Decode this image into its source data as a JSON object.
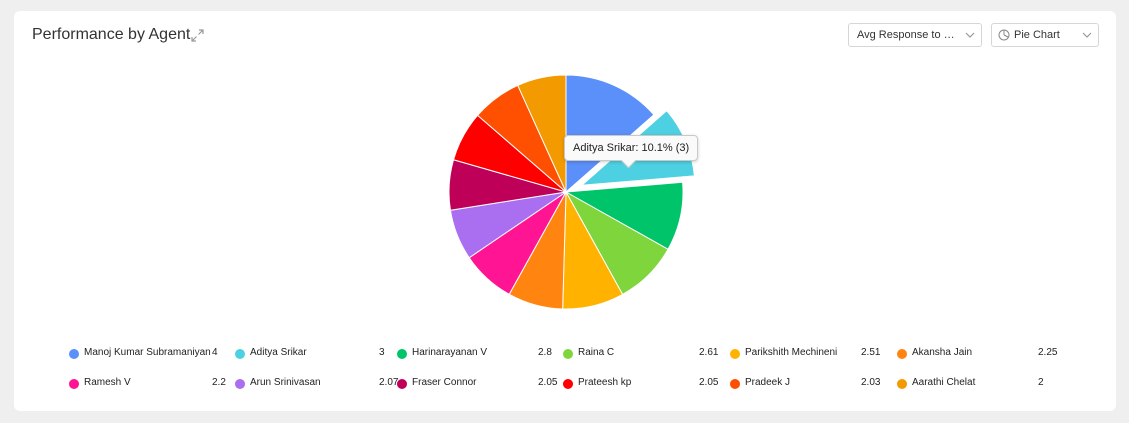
{
  "header": {
    "title": "Performance by Agent",
    "metric_select": "Avg Response to clo...",
    "chart_type_select": "Pie Chart"
  },
  "tooltip": "Aditya Srikar: 10.1% (3)",
  "chart_data": {
    "type": "pie",
    "title": "Performance by Agent",
    "highlighted": "Aditya Srikar",
    "legend_position": "bottom",
    "slices": [
      {
        "label": "Manoj Kumar Subramaniyan",
        "value": 4,
        "display": "4",
        "color": "#5b8ff9"
      },
      {
        "label": "Aditya Srikar",
        "value": 3,
        "display": "3",
        "color": "#4dd0e1"
      },
      {
        "label": "Harinarayanan V",
        "value": 2.8,
        "display": "2.8",
        "color": "#00c46a"
      },
      {
        "label": "Raina C",
        "value": 2.61,
        "display": "2.61",
        "color": "#7ed63c"
      },
      {
        "label": "Parikshith Mechineni",
        "value": 2.51,
        "display": "2.51",
        "color": "#ffb300"
      },
      {
        "label": "Akansha Jain",
        "value": 2.25,
        "display": "2.25",
        "color": "#ff8410"
      },
      {
        "label": "Ramesh V",
        "value": 2.2,
        "display": "2.2",
        "color": "#ff1493"
      },
      {
        "label": "Arun Srinivasan",
        "value": 2.07,
        "display": "2.07",
        "color": "#a96ff0"
      },
      {
        "label": "Fraser Connor",
        "value": 2.05,
        "display": "2.05",
        "color": "#bf0058"
      },
      {
        "label": "Prateesh kp",
        "value": 2.05,
        "display": "2.05",
        "color": "#ff0000"
      },
      {
        "label": "Pradeek J",
        "value": 2.03,
        "display": "2.03",
        "color": "#ff4f00"
      },
      {
        "label": "Aarathi Chelat",
        "value": 2,
        "display": "2",
        "color": "#f29a00"
      }
    ]
  }
}
